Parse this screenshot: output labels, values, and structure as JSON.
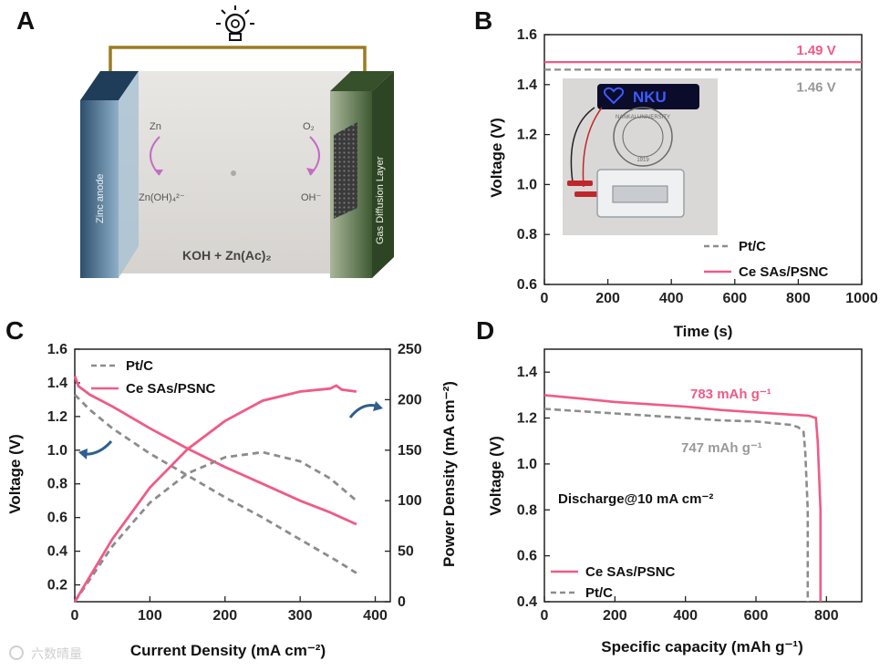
{
  "colors": {
    "ce": "#ef5b86",
    "pt": "#8c8c8c",
    "arrow": "#2e5f8e",
    "arc": "#c46cc4",
    "wire": "#9b7c22"
  },
  "panel_a": {
    "letter": "A",
    "anode": "Zinc anode",
    "gdl": "Gas Diffusion Layer",
    "zn": "Zn",
    "zincate": "Zn(OH)₄²⁻",
    "o2": "O₂",
    "oh": "OH⁻",
    "electrolyte": "KOH + Zn(Ac)₂"
  },
  "panel_b": {
    "letter": "B",
    "photo_badge": "NKU",
    "photo_seal_text": "NANKAI UNIVERSITY",
    "photo_seal_year": "1919"
  },
  "panel_c": {
    "letter": "C"
  },
  "panel_d": {
    "letter": "D"
  },
  "watermark": "六数晴量",
  "chart_data": [
    {
      "id": "B",
      "type": "line",
      "title": "",
      "xlabel": "Time (s)",
      "ylabel": "Voltage (V)",
      "xlim": [
        0,
        1000
      ],
      "ylim": [
        0.6,
        1.6
      ],
      "xticks": [
        0,
        200,
        400,
        600,
        800,
        1000
      ],
      "yticks": [
        0.6,
        0.8,
        1.0,
        1.2,
        1.4,
        1.6
      ],
      "legend": "bottom-right",
      "annotations": [
        {
          "text": "1.49 V",
          "series": "Ce SAs/PSNC"
        },
        {
          "text": "1.46 V",
          "series": "Pt/C"
        }
      ],
      "series": [
        {
          "name": "Pt/C",
          "style": "dashed",
          "x": [
            0,
            1000
          ],
          "y": [
            1.46,
            1.46
          ]
        },
        {
          "name": "Ce SAs/PSNC",
          "style": "solid",
          "x": [
            0,
            1000
          ],
          "y": [
            1.49,
            1.49
          ]
        }
      ]
    },
    {
      "id": "C",
      "type": "line",
      "xlabel": "Current Density (mA cm⁻²)",
      "ylabel": "Voltage (V)",
      "y2label": "Power Density (mA cm⁻²)",
      "xlim": [
        0,
        420
      ],
      "ylim": [
        0.1,
        1.6
      ],
      "y2lim": [
        0,
        250
      ],
      "xticks": [
        0,
        100,
        200,
        300,
        400
      ],
      "yticks": [
        0.2,
        0.4,
        0.6,
        0.8,
        1.0,
        1.2,
        1.4,
        1.6
      ],
      "y2ticks": [
        0,
        50,
        100,
        150,
        200,
        250
      ],
      "legend": "top-left",
      "series": [
        {
          "name": "Pt/C",
          "role": "voltage",
          "axis": "left",
          "style": "dashed",
          "x": [
            0,
            20,
            50,
            100,
            150,
            200,
            250,
            300,
            350,
            375
          ],
          "y": [
            1.33,
            1.24,
            1.13,
            0.98,
            0.85,
            0.72,
            0.6,
            0.47,
            0.34,
            0.27
          ]
        },
        {
          "name": "Ce SAs/PSNC",
          "role": "voltage",
          "axis": "left",
          "style": "solid",
          "x": [
            0,
            5,
            20,
            50,
            100,
            150,
            200,
            250,
            300,
            340,
            350,
            375
          ],
          "y": [
            1.44,
            1.38,
            1.33,
            1.26,
            1.13,
            1.01,
            0.9,
            0.8,
            0.7,
            0.63,
            0.61,
            0.56
          ]
        },
        {
          "name": "Pt/C",
          "role": "power",
          "axis": "right",
          "style": "dashed",
          "x": [
            0,
            50,
            100,
            150,
            200,
            250,
            300,
            340,
            375
          ],
          "y": [
            0,
            55,
            98,
            127,
            143,
            148,
            139,
            122,
            100
          ]
        },
        {
          "name": "Ce SAs/PSNC",
          "role": "power",
          "axis": "right",
          "style": "solid",
          "x": [
            0,
            50,
            100,
            150,
            200,
            250,
            300,
            340,
            348,
            355,
            375
          ],
          "y": [
            0,
            62,
            113,
            151,
            179,
            199,
            208,
            211,
            214,
            210,
            208
          ]
        }
      ]
    },
    {
      "id": "D",
      "type": "line",
      "xlabel": "Specific capacity (mAh g⁻¹)",
      "ylabel": "Voltage (V)",
      "xlim": [
        0,
        900
      ],
      "ylim": [
        0.4,
        1.5
      ],
      "xticks": [
        0,
        200,
        400,
        600,
        800
      ],
      "yticks": [
        0.4,
        0.6,
        0.8,
        1.0,
        1.2,
        1.4
      ],
      "legend": "bottom-left",
      "annotations": [
        {
          "text": "Discharge@10 mA cm⁻²"
        },
        {
          "text": "783 mAh g⁻¹",
          "series": "Ce SAs/PSNC"
        },
        {
          "text": "747 mAh g⁻¹",
          "series": "Pt/C"
        }
      ],
      "series": [
        {
          "name": "Ce SAs/PSNC",
          "style": "solid",
          "x": [
            0,
            100,
            200,
            300,
            400,
            500,
            600,
            700,
            750,
            770,
            775,
            783,
            783
          ],
          "y": [
            1.3,
            1.285,
            1.27,
            1.26,
            1.25,
            1.235,
            1.225,
            1.215,
            1.21,
            1.2,
            1.1,
            0.8,
            0.4
          ]
        },
        {
          "name": "Pt/C",
          "style": "dashed",
          "x": [
            0,
            100,
            200,
            300,
            400,
            500,
            600,
            700,
            720,
            735,
            740,
            747,
            747
          ],
          "y": [
            1.24,
            1.23,
            1.22,
            1.21,
            1.2,
            1.19,
            1.185,
            1.17,
            1.16,
            1.14,
            1.05,
            0.8,
            0.4
          ]
        }
      ]
    }
  ]
}
